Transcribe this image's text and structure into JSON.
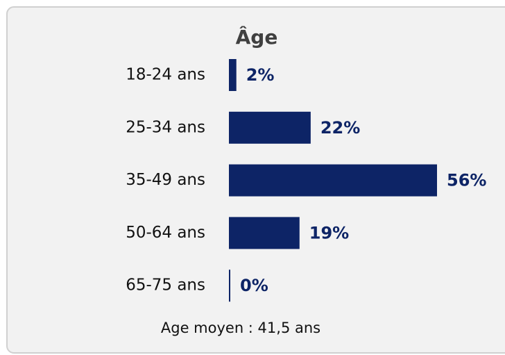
{
  "chart_data": {
    "type": "bar",
    "orientation": "horizontal",
    "title": "Âge",
    "categories": [
      "18-24 ans",
      "25-34 ans",
      "35-49 ans",
      "50-64 ans",
      "65-75 ans"
    ],
    "values": [
      2,
      22,
      56,
      19,
      0
    ],
    "value_labels": [
      "2%",
      "22%",
      "56%",
      "19%",
      "0%"
    ],
    "color": "#0d2466",
    "annotation": "Age moyen : 41,5 ans"
  }
}
